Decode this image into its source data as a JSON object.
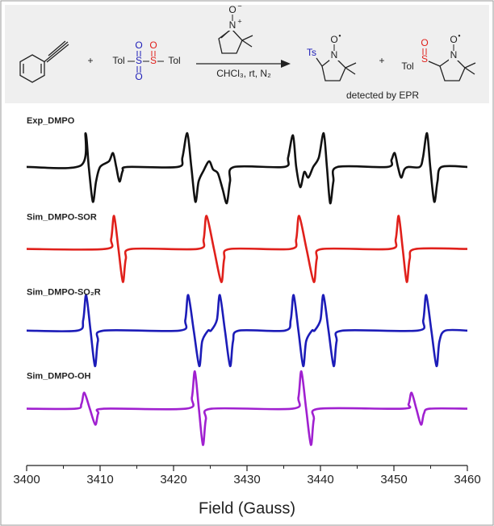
{
  "scheme": {
    "tol": "Tol",
    "s": "S",
    "o": "O",
    "n": "N",
    "ts": "Ts",
    "plus": "+",
    "minus": "−",
    "radical": "•",
    "conditions": "CHCl₃, rt, N₂",
    "caption": "detected by EPR"
  },
  "chart_data": {
    "type": "line",
    "xlabel": "Field (Gauss)",
    "xlim": [
      3400,
      3460
    ],
    "xticks": [
      3400,
      3410,
      3420,
      3430,
      3440,
      3450,
      3460
    ],
    "xminorticks": [
      3405,
      3415,
      3425,
      3435,
      3445,
      3455
    ],
    "ylim": [
      0,
      10
    ],
    "series": [
      {
        "name": "Exp_DMPO",
        "color": "#111111",
        "x": [
          3400,
          3407.36,
          3408.02,
          3408.46,
          3409.01,
          3409.45,
          3410.0,
          3411.21,
          3411.76,
          3412.2,
          3412.64,
          3413.08,
          3413.74,
          3420.55,
          3421.21,
          3421.87,
          3422.42,
          3422.97,
          3423.41,
          3424.07,
          3424.84,
          3425.38,
          3426.04,
          3426.7,
          3427.25,
          3427.69,
          3428.24,
          3435.05,
          3435.6,
          3436.26,
          3436.7,
          3437.25,
          3437.8,
          3438.35,
          3439.01,
          3439.78,
          3440.44,
          3440.88,
          3441.32,
          3441.76,
          3442.31,
          3449.12,
          3449.67,
          3450.11,
          3450.55,
          3450.99,
          3451.43,
          3451.98,
          3453.52,
          3453.96,
          3454.51,
          3454.95,
          3455.49,
          3455.93,
          3456.48,
          3460
        ],
        "values": [
          8.41,
          8.45,
          9.36,
          8.41,
          7.43,
          8.0,
          8.41,
          8.57,
          8.8,
          8.41,
          8.0,
          8.3,
          8.41,
          8.41,
          8.68,
          9.36,
          8.41,
          7.43,
          8.0,
          8.3,
          8.57,
          8.34,
          8.23,
          7.77,
          7.39,
          8.0,
          8.41,
          8.41,
          8.68,
          9.3,
          8.41,
          7.84,
          8.27,
          8.11,
          8.41,
          8.68,
          9.36,
          8.41,
          7.39,
          8.0,
          8.41,
          8.41,
          8.61,
          8.8,
          8.41,
          8.11,
          8.34,
          8.41,
          8.41,
          8.68,
          9.36,
          8.41,
          7.43,
          8.0,
          8.41,
          8.41
        ]
      },
      {
        "name": "Sim_DMPO-SOR",
        "color": "#e0201b",
        "x": [
          3400,
          3410.7,
          3411.5,
          3411.9,
          3412.5,
          3413.1,
          3413.5,
          3414.3,
          3423.3,
          3424.1,
          3424.5,
          3425.5,
          3426.5,
          3426.9,
          3427.7,
          3435.9,
          3436.7,
          3437.1,
          3438.1,
          3439.1,
          3439.5,
          3440.3,
          3449.45,
          3450.25,
          3450.65,
          3451.2,
          3451.75,
          3452.15,
          3452.95,
          3460
        ],
        "values": [
          6.1,
          6.1,
          6.38,
          7.03,
          6.1,
          5.17,
          5.82,
          6.1,
          6.1,
          6.38,
          7.03,
          6.1,
          5.17,
          5.82,
          6.1,
          6.1,
          6.38,
          7.03,
          6.1,
          5.17,
          5.82,
          6.1,
          6.1,
          6.38,
          7.03,
          6.1,
          5.17,
          5.82,
          6.1,
          6.1
        ]
      },
      {
        "name": "Sim_DMPO-SO₂R",
        "color": "#1c1cb8",
        "x": [
          3400,
          3406.9,
          3407.7,
          3408.1,
          3408.7,
          3409.3,
          3409.7,
          3410.5,
          3420.8,
          3421.6,
          3422.0,
          3422.75,
          3423.5,
          3423.9,
          3424.7,
          3425.1,
          3425.9,
          3426.3,
          3427.0,
          3427.7,
          3428.1,
          3428.9,
          3435.15,
          3435.95,
          3436.35,
          3437.0,
          3437.65,
          3438.05,
          3438.85,
          3439.2,
          3440.0,
          3440.4,
          3441.1,
          3441.8,
          3442.2,
          3443.0,
          3453.2,
          3454.0,
          3454.4,
          3455.1,
          3455.8,
          3456.2,
          3457.0,
          3460
        ],
        "values": [
          3.8,
          3.8,
          4.1,
          4.8,
          3.8,
          2.8,
          3.5,
          3.8,
          3.8,
          4.1,
          4.8,
          3.8,
          2.8,
          3.5,
          3.8,
          3.8,
          4.1,
          4.8,
          3.8,
          2.8,
          3.5,
          3.8,
          3.8,
          4.1,
          4.8,
          3.8,
          2.8,
          3.5,
          3.8,
          3.8,
          4.1,
          4.8,
          3.8,
          2.8,
          3.5,
          3.8,
          3.8,
          4.1,
          4.8,
          3.8,
          2.8,
          3.5,
          3.8,
          3.8
        ]
      },
      {
        "name": "Sim_DMPO-OH",
        "color": "#a020d0",
        "x": [
          3400,
          3406.65,
          3407.45,
          3407.85,
          3408.6,
          3409.35,
          3409.75,
          3410.55,
          3421.7,
          3422.5,
          3422.9,
          3423.45,
          3424.0,
          3424.4,
          3425.2,
          3436.2,
          3437.0,
          3437.4,
          3438.05,
          3438.7,
          3439.1,
          3439.9,
          3451.2,
          3452.0,
          3452.4,
          3453.05,
          3453.7,
          3454.1,
          3454.9,
          3460
        ],
        "values": [
          1.6,
          1.6,
          1.73,
          2.05,
          1.6,
          1.15,
          1.47,
          1.6,
          1.6,
          1.92,
          2.65,
          1.6,
          0.58,
          1.3,
          1.6,
          1.6,
          1.92,
          2.65,
          1.6,
          0.58,
          1.3,
          1.6,
          1.6,
          1.73,
          2.05,
          1.6,
          1.15,
          1.47,
          1.6,
          1.6
        ]
      }
    ]
  }
}
